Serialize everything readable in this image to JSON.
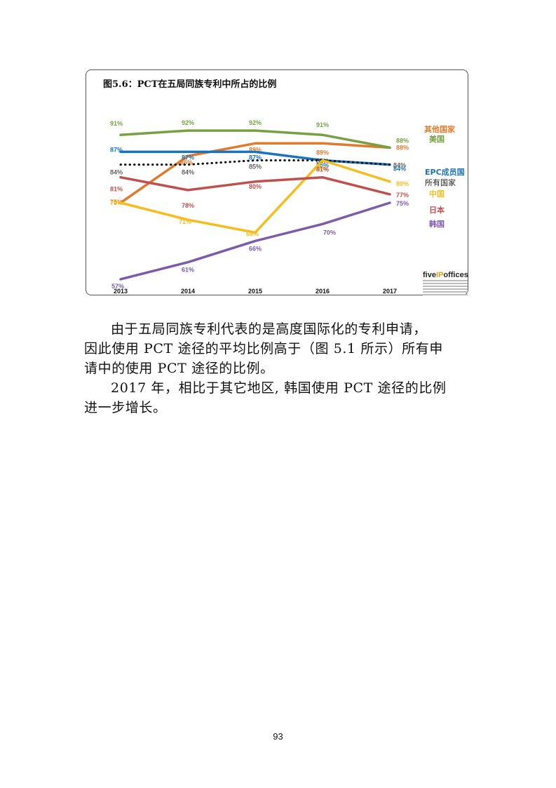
{
  "chart_data": {
    "type": "line",
    "title": "图5.6：PCT在五局同族专利中所占的比例",
    "categories": [
      "2013",
      "2014",
      "2015",
      "2016",
      "2017"
    ],
    "ylim": [
      55,
      95
    ],
    "series": [
      {
        "name": "其他国家",
        "color": "#e07b2e",
        "values": [
          75,
          86,
          89,
          89,
          88
        ],
        "labels": [
          "75%",
          "86%",
          "89%",
          "89%",
          "88%"
        ]
      },
      {
        "name": "美国",
        "color": "#77a141",
        "values": [
          91,
          92,
          92,
          91,
          88
        ],
        "labels": [
          "91%",
          "92%",
          "92%",
          "91%",
          "88%"
        ]
      },
      {
        "name": "EPC成员国",
        "color": "#1a74bb",
        "values": [
          87,
          87,
          87,
          85,
          84
        ],
        "labels": [
          "87%",
          "87%",
          "87%",
          "85%",
          "84%"
        ]
      },
      {
        "name": "所有国家",
        "color": "#111111",
        "dotted": true,
        "values": [
          84,
          84,
          85,
          85,
          84
        ],
        "labels": [
          "84%",
          "84%",
          "85%",
          "85%",
          "84%"
        ]
      },
      {
        "name": "中国",
        "color": "#f5bd1f",
        "values": [
          75,
          71,
          68,
          85,
          80
        ],
        "labels": [
          "75%",
          "71%",
          "68%",
          "85%",
          "80%"
        ]
      },
      {
        "name": "日本",
        "color": "#c0504d",
        "values": [
          81,
          78,
          80,
          81,
          77
        ],
        "labels": [
          "81%",
          "78%",
          "80%",
          "81%",
          "77%"
        ]
      },
      {
        "name": "韩国",
        "color": "#7c5ca8",
        "values": [
          57,
          61,
          66,
          70,
          75
        ],
        "labels": [
          "57%",
          "61%",
          "66%",
          "70%",
          "75%"
        ]
      }
    ]
  },
  "logo": {
    "text_a": "five",
    "text_b": "IP",
    "text_c": "offices"
  },
  "paragraphs": [
    {
      "line1": "由于五局同族专利代表的是高度国际化的专利申请，",
      "line2": "因此使用 PCT 途径的平均比例高于（图 5.1 所示）所有申",
      "line3": "请中的使用 PCT 途径的比例。"
    },
    {
      "line1": "2017 年，相比于其它地区, 韩国使用 PCT 途径的比例",
      "line2": "进一步增长。"
    }
  ],
  "page_number": "93"
}
